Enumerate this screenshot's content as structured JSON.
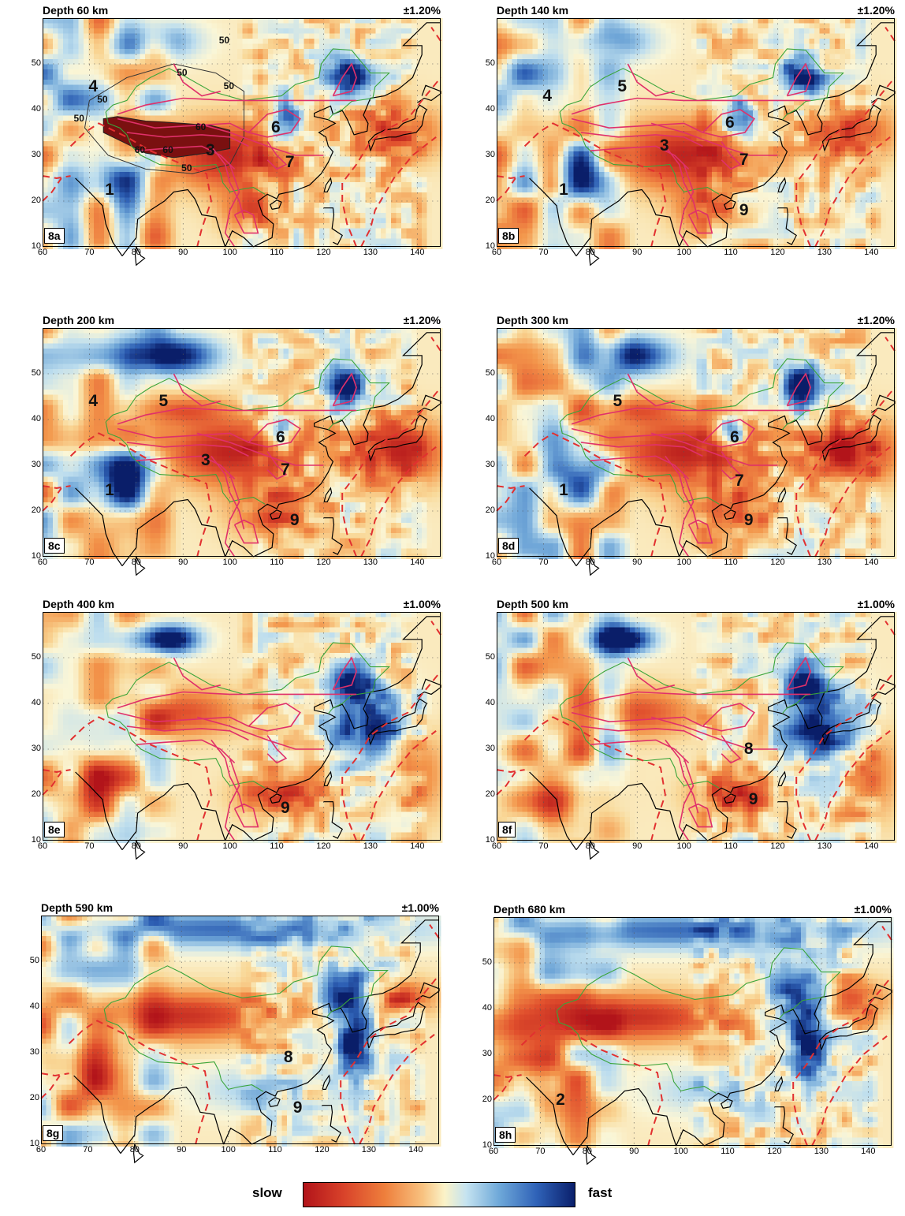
{
  "panels": [
    {
      "id": "8a",
      "depth": "Depth 60 km",
      "scale": "±1.20%",
      "tag": "8a",
      "labels": [
        {
          "t": "1",
          "lon": 74.5,
          "lat": 22.5
        },
        {
          "t": "3",
          "lon": 96,
          "lat": 31
        },
        {
          "t": "4",
          "lon": 71,
          "lat": 45
        },
        {
          "t": "6",
          "lon": 110,
          "lat": 36
        },
        {
          "t": "7",
          "lon": 113,
          "lat": 28.5
        }
      ],
      "contours": [
        {
          "t": "50",
          "lon": 99,
          "lat": 55
        },
        {
          "t": "50",
          "lon": 90,
          "lat": 48
        },
        {
          "t": "50",
          "lon": 73,
          "lat": 42
        },
        {
          "t": "50",
          "lon": 68,
          "lat": 38
        },
        {
          "t": "50",
          "lon": 100,
          "lat": 45
        },
        {
          "t": "60",
          "lon": 94,
          "lat": 36
        },
        {
          "t": "60",
          "lon": 81,
          "lat": 31
        },
        {
          "t": "60",
          "lon": 87,
          "lat": 31
        },
        {
          "t": "50",
          "lon": 91,
          "lat": 27
        }
      ],
      "palette": "shallow",
      "tibet": true,
      "outlines": true,
      "seed": 3
    },
    {
      "id": "8b",
      "depth": "Depth 140 km",
      "scale": "±1.20%",
      "tag": "8b",
      "labels": [
        {
          "t": "1",
          "lon": 74.5,
          "lat": 22.5
        },
        {
          "t": "3",
          "lon": 96,
          "lat": 32
        },
        {
          "t": "4",
          "lon": 71,
          "lat": 43
        },
        {
          "t": "5",
          "lon": 87,
          "lat": 45
        },
        {
          "t": "6",
          "lon": 110,
          "lat": 37
        },
        {
          "t": "7",
          "lon": 113,
          "lat": 29
        },
        {
          "t": "9",
          "lon": 113,
          "lat": 18
        }
      ],
      "contours": [],
      "palette": "shallow",
      "tibet": false,
      "outlines": true,
      "seed": 7
    },
    {
      "id": "8c",
      "depth": "Depth 200 km",
      "scale": "±1.20%",
      "tag": "8c",
      "labels": [
        {
          "t": "1",
          "lon": 74.5,
          "lat": 24.5
        },
        {
          "t": "3",
          "lon": 95,
          "lat": 31
        },
        {
          "t": "4",
          "lon": 71,
          "lat": 44
        },
        {
          "t": "5",
          "lon": 86,
          "lat": 44
        },
        {
          "t": "6",
          "lon": 111,
          "lat": 36
        },
        {
          "t": "7",
          "lon": 112,
          "lat": 29
        },
        {
          "t": "9",
          "lon": 114,
          "lat": 18
        }
      ],
      "contours": [],
      "palette": "mid",
      "tibet": false,
      "outlines": true,
      "seed": 11
    },
    {
      "id": "8d",
      "depth": "Depth 300 km",
      "scale": "±1.20%",
      "tag": "8d",
      "labels": [
        {
          "t": "1",
          "lon": 74.5,
          "lat": 24.5
        },
        {
          "t": "5",
          "lon": 86,
          "lat": 44
        },
        {
          "t": "6",
          "lon": 111,
          "lat": 36
        },
        {
          "t": "7",
          "lon": 112,
          "lat": 26.5
        },
        {
          "t": "9",
          "lon": 114,
          "lat": 18
        }
      ],
      "contours": [],
      "palette": "mid",
      "tibet": false,
      "outlines": true,
      "seed": 17
    },
    {
      "id": "8e",
      "depth": "Depth 400 km",
      "scale": "±1.00%",
      "tag": "8e",
      "labels": [
        {
          "t": "9",
          "lon": 112,
          "lat": 17
        }
      ],
      "contours": [],
      "palette": "deep",
      "tibet": false,
      "outlines": true,
      "seed": 23
    },
    {
      "id": "8f",
      "depth": "Depth 500 km",
      "scale": "±1.00%",
      "tag": "8f",
      "labels": [
        {
          "t": "8",
          "lon": 114,
          "lat": 30
        },
        {
          "t": "9",
          "lon": 115,
          "lat": 19
        }
      ],
      "contours": [],
      "palette": "deep",
      "tibet": false,
      "outlines": true,
      "seed": 29
    },
    {
      "id": "8g",
      "depth": "Depth 590 km",
      "scale": "±1.00%",
      "tag": "8g",
      "labels": [
        {
          "t": "8",
          "lon": 113,
          "lat": 29
        },
        {
          "t": "9",
          "lon": 115,
          "lat": 18
        }
      ],
      "contours": [],
      "palette": "tz",
      "tibet": false,
      "outlines": false,
      "seed": 31
    },
    {
      "id": "8h",
      "depth": "Depth 680 km",
      "scale": "±1.00%",
      "tag": "8h",
      "labels": [
        {
          "t": "2",
          "lon": 74.5,
          "lat": 20
        }
      ],
      "contours": [],
      "palette": "tz",
      "tibet": false,
      "outlines": false,
      "seed": 37
    }
  ],
  "axes": {
    "x_ticks": [
      60,
      70,
      80,
      90,
      100,
      110,
      120,
      130,
      140
    ],
    "y_ticks": [
      10,
      20,
      30,
      40,
      50
    ],
    "lon_range": [
      60,
      145
    ],
    "lat_range": [
      10,
      60
    ]
  },
  "legend": {
    "slow": "slow",
    "fast": "fast"
  },
  "colors": {
    "slow": "#b2141a",
    "neutral": "#fbf3c8",
    "fast": "#0a1f6b",
    "coast": "#000000",
    "border": "#3aa53a",
    "blocks": "#e0306a",
    "plate": "#e23030"
  }
}
